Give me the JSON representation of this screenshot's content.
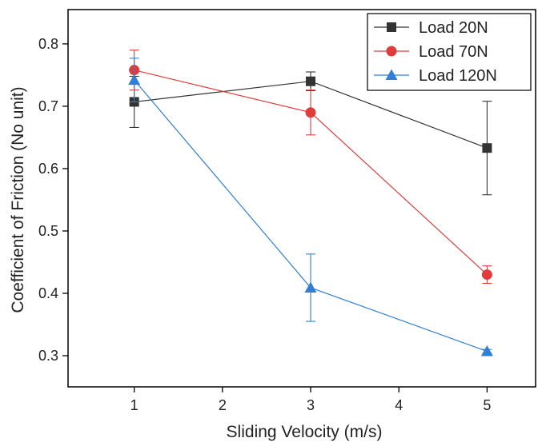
{
  "chart_data": {
    "type": "line",
    "xlabel": "Sliding Velocity (m/s)",
    "ylabel": "Coefficient of Friction (No unit)",
    "xlim": [
      0.25,
      5.55
    ],
    "ylim": [
      0.25,
      0.855
    ],
    "x_ticks": [
      1,
      2,
      3,
      4,
      5
    ],
    "y_ticks": [
      0.3,
      0.4,
      0.5,
      0.6,
      0.7,
      0.8
    ],
    "x_tick_labels": [
      "1",
      "2",
      "3",
      "4",
      "5"
    ],
    "y_tick_labels": [
      "0.3",
      "0.4",
      "0.5",
      "0.6",
      "0.7",
      "0.8"
    ],
    "legend_position": "top-right",
    "grid": false,
    "series": [
      {
        "name": "Load 20N",
        "color": "#333333",
        "marker": "square",
        "x": [
          1,
          3,
          5
        ],
        "y": [
          0.707,
          0.74,
          0.633
        ],
        "err": [
          0.041,
          0.015,
          0.075
        ]
      },
      {
        "name": "Load 70N",
        "color": "#e03c3c",
        "marker": "circle",
        "x": [
          1,
          3,
          5
        ],
        "y": [
          0.758,
          0.69,
          0.43
        ],
        "err": [
          0.032,
          0.036,
          0.014
        ]
      },
      {
        "name": "Load 120N",
        "color": "#2f7fd6",
        "marker": "triangle",
        "x": [
          1,
          3,
          5
        ],
        "y": [
          0.742,
          0.409,
          0.307
        ],
        "err": [
          0.035,
          0.054,
          0.003
        ]
      }
    ]
  }
}
